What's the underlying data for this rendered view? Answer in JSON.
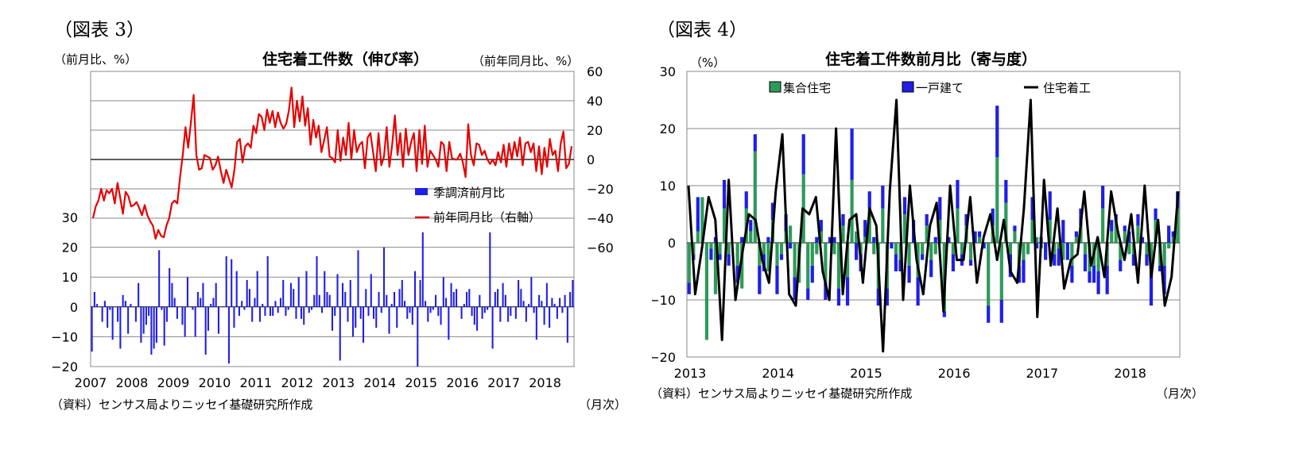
{
  "chart_data": [
    {
      "type": "bar+line",
      "figure_label": "（図表 3）",
      "title": "住宅着工件数（伸び率）",
      "left_unit": "（前月比、%）",
      "right_unit": "（前年同月比、%）",
      "source": "（資料）センサス局よりニッセイ基礎研究所作成",
      "x_unit": "（月次）",
      "x_ticks": [
        "2007",
        "2008",
        "2009",
        "2010",
        "2011",
        "2012",
        "2013",
        "2014",
        "2015",
        "2016",
        "2017",
        "2018"
      ],
      "yleft_ticks": [
        "30",
        "20",
        "10",
        "0",
        "−10",
        "−20"
      ],
      "yleft_lim": [
        -20,
        30
      ],
      "yright_ticks": [
        "60",
        "40",
        "20",
        "0",
        "−20",
        "−40",
        "−60"
      ],
      "yright_lim": [
        -60,
        60
      ],
      "legend": {
        "bar": "季調済前月比",
        "line": "前年同月比（右軸）"
      },
      "colors": {
        "bar": "#1f1fe6",
        "line": "#e60000"
      },
      "series": [
        {
          "role": "bar",
          "values": [
            -15,
            5,
            1,
            0,
            -5,
            2,
            -7,
            -1,
            -11,
            0,
            -5,
            -14,
            4,
            2,
            -9,
            1,
            0,
            -5,
            8,
            -12,
            -9,
            -6,
            -3,
            -16,
            -14,
            -12,
            19,
            -1,
            -13,
            -5,
            13,
            8,
            3,
            -4,
            0,
            -6,
            -10,
            10,
            0,
            -1,
            -10,
            5,
            3,
            8,
            -16,
            -8,
            1,
            3,
            8,
            -9,
            0,
            0,
            17,
            -19,
            16,
            -7,
            12,
            -3,
            2,
            -1,
            9,
            6,
            -5,
            3,
            12,
            -5,
            1,
            -3,
            17,
            -3,
            -3,
            2,
            -2,
            3,
            9,
            -3,
            -1,
            8,
            6,
            -4,
            10,
            -4,
            -6,
            12,
            -2,
            -1,
            4,
            17,
            4,
            -2,
            12,
            5,
            4,
            -8,
            -3,
            11,
            -18,
            8,
            5,
            -5,
            9,
            -10,
            -7,
            19,
            -4,
            -12,
            6,
            -3,
            11,
            -4,
            -7,
            5,
            -2,
            20,
            4,
            -9,
            1,
            5,
            -7,
            6,
            9,
            2,
            -4,
            -2,
            -6,
            12,
            -20,
            9,
            25,
            2,
            -5,
            -2,
            -1,
            4,
            -3,
            -6,
            10,
            3,
            -11,
            8,
            5,
            6,
            0,
            -4,
            1,
            5,
            6,
            -3,
            -6,
            -8,
            4,
            -4,
            -2,
            -1,
            25,
            -14,
            5,
            6,
            -5,
            8,
            4,
            -5,
            -3,
            0,
            -4,
            9,
            6,
            2,
            -5,
            1,
            10,
            -2,
            -11,
            4,
            2,
            -6,
            8,
            -7,
            3,
            1,
            -4,
            3,
            -2,
            4,
            -12,
            5,
            9
          ]
        },
        {
          "role": "line",
          "values": [
            -40,
            -32,
            -28,
            -20,
            -28,
            -21,
            -23,
            -20,
            -30,
            -16,
            -26,
            -37,
            -22,
            -25,
            -32,
            -31,
            -29,
            -33,
            -38,
            -31,
            -38,
            -42,
            -45,
            -54,
            -48,
            -52,
            -53,
            -45,
            -40,
            -30,
            -28,
            -30,
            -12,
            3,
            22,
            8,
            25,
            44,
            3,
            -7,
            -6,
            3,
            2,
            1,
            -7,
            -4,
            2,
            -8,
            -16,
            -7,
            -13,
            -19,
            -7,
            12,
            14,
            -2,
            9,
            11,
            8,
            23,
            18,
            31,
            29,
            20,
            34,
            25,
            33,
            22,
            32,
            25,
            21,
            24,
            33,
            49,
            22,
            40,
            26,
            43,
            23,
            35,
            10,
            27,
            15,
            23,
            5,
            13,
            22,
            2,
            1,
            -2,
            20,
            -1,
            15,
            3,
            25,
            0,
            20,
            5,
            10,
            12,
            -6,
            15,
            18,
            5,
            -8,
            18,
            -4,
            2,
            22,
            -5,
            10,
            30,
            3,
            18,
            -5,
            21,
            3,
            12,
            18,
            -8,
            20,
            -3,
            23,
            -5,
            6,
            3,
            0,
            -5,
            12,
            10,
            -8,
            12,
            1,
            0,
            0,
            4,
            -2,
            -12,
            24,
            3,
            -4,
            11,
            10,
            3,
            6,
            0,
            -3,
            0,
            -4,
            5,
            -2,
            10,
            -5,
            11,
            0,
            12,
            2,
            15,
            -4,
            11,
            12,
            5,
            11,
            -8,
            9,
            -10,
            8,
            -5,
            14,
            3,
            6,
            -8,
            11,
            19,
            -6,
            -3,
            9
          ]
        }
      ]
    },
    {
      "type": "bar+line",
      "figure_label": "（図表 4）",
      "title": "住宅着工件数前月比（寄与度）",
      "y_unit": "（%）",
      "source": "（資料）センサス局よりニッセイ基礎研究所作成",
      "x_unit": "（月次）",
      "x_ticks": [
        "2013",
        "2014",
        "2015",
        "2016",
        "2017",
        "2018"
      ],
      "y_ticks": [
        "30",
        "20",
        "10",
        "0",
        "−10",
        "−20"
      ],
      "ylim": [
        -20,
        30
      ],
      "legend": {
        "multi": "集合住宅",
        "single": "一戸建て",
        "total": "住宅着工"
      },
      "colors": {
        "multi": "#2e9a5a",
        "single": "#1f1fe6",
        "total": "#000000"
      },
      "series": [
        {
          "role": "stack",
          "key": "multi",
          "values": [
            -7,
            -2,
            2,
            8,
            -17,
            -1,
            -9,
            -2,
            6,
            -2,
            0,
            -4,
            -8,
            6,
            2,
            16,
            -4,
            -2,
            -5,
            4,
            -4,
            -2,
            2,
            3,
            -6,
            -7,
            12,
            -8,
            -4,
            -2,
            2,
            -7,
            0,
            -2,
            -8,
            3,
            -6,
            11,
            2,
            -2,
            1,
            6,
            -2,
            -8,
            6,
            -8,
            0,
            -2,
            -3,
            5,
            -4,
            0,
            -6,
            -2,
            3,
            -3,
            -2,
            4,
            -12,
            0,
            -2,
            6,
            -2,
            3,
            -3,
            0,
            1,
            0,
            -11,
            3,
            15,
            -10,
            7,
            -2,
            2,
            -4,
            -3,
            -2,
            4,
            1,
            -1,
            0,
            4,
            -2,
            -1,
            -3,
            0,
            -4,
            1,
            3,
            -2,
            -5,
            -4,
            -5,
            6,
            -4,
            2,
            4,
            -3,
            2,
            -2,
            -2,
            3,
            0,
            -2,
            -5,
            4,
            -4,
            -4,
            -1,
            1,
            6
          ]
        },
        {
          "role": "stack",
          "key": "single",
          "values": [
            -2,
            -1,
            6,
            0,
            0,
            -2,
            1,
            -1,
            5,
            -2,
            0,
            -3,
            1,
            3,
            2,
            3,
            -5,
            -3,
            1,
            3,
            -5,
            -1,
            3,
            -1,
            -4,
            0,
            7,
            -2,
            -3,
            1,
            2,
            -3,
            1,
            1,
            -3,
            2,
            -5,
            9,
            -3,
            -3,
            3,
            3,
            1,
            -3,
            4,
            -3,
            -1,
            -3,
            -2,
            3,
            -3,
            4,
            -5,
            -1,
            2,
            -3,
            1,
            4,
            -1,
            1,
            -3,
            5,
            -2,
            2,
            -1,
            2,
            1,
            -1,
            -3,
            3,
            9,
            -4,
            4,
            -4,
            1,
            -3,
            -4,
            0,
            4,
            -1,
            1,
            -3,
            5,
            -2,
            -3,
            4,
            -3,
            -3,
            1,
            3,
            -3,
            -2,
            -3,
            -4,
            4,
            -5,
            2,
            1,
            -2,
            1,
            2,
            -2,
            2,
            1,
            -2,
            -6,
            2,
            -1,
            -5,
            3,
            1,
            3
          ]
        },
        {
          "role": "line",
          "key": "total",
          "values": [
            10,
            -9,
            -1,
            8,
            4,
            -17,
            11,
            -10,
            -2,
            5,
            4,
            -3,
            -7,
            9,
            19,
            -9,
            -11,
            6,
            5,
            8,
            -5,
            -10,
            20,
            -9,
            4,
            5,
            -7,
            6,
            3,
            -19,
            9,
            25,
            -10,
            10,
            -3,
            -9,
            3,
            7,
            -12,
            10,
            -3,
            -3,
            8,
            -7,
            1,
            5,
            -3,
            4,
            -5,
            -7,
            6,
            25,
            -13,
            11,
            -4,
            6,
            -8,
            -3,
            -2,
            9,
            -4,
            1,
            -6,
            9,
            2,
            -3,
            5,
            -7,
            10,
            -6,
            4,
            -11,
            -6,
            9
          ]
        }
      ]
    }
  ]
}
